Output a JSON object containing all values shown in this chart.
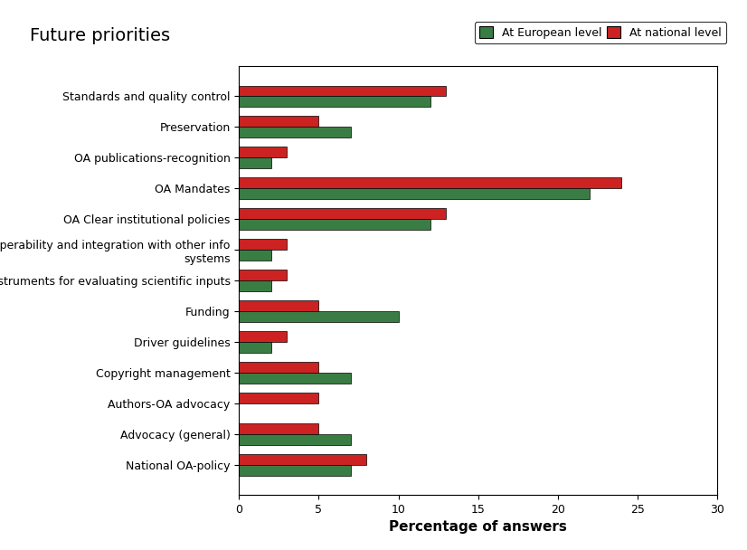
{
  "categories": [
    "National OA-policy",
    "Advocacy (general)",
    "Authors-OA advocacy",
    "Copyright management",
    "Driver guidelines",
    "Funding",
    "Instruments for evaluating scientific inputs",
    "Interoperability and integration with other info\nsystems",
    "OA Clear institutional policies",
    "OA Mandates",
    "OA publications-recognition",
    "Preservation",
    "Standards and quality control"
  ],
  "european_values": [
    7.0,
    7.0,
    0.0,
    7.0,
    2.0,
    10.0,
    2.0,
    2.0,
    12.0,
    22.0,
    2.0,
    7.0,
    12.0
  ],
  "national_values": [
    8.0,
    5.0,
    5.0,
    5.0,
    3.0,
    5.0,
    3.0,
    3.0,
    13.0,
    24.0,
    3.0,
    5.0,
    13.0
  ],
  "european_color": "#3a7d44",
  "national_color": "#cc2222",
  "title": "Future priorities",
  "xlabel": "Percentage of answers",
  "xlim": [
    0,
    30
  ],
  "xticks": [
    0,
    5,
    10,
    15,
    20,
    25,
    30
  ],
  "legend_european": "At European level",
  "legend_national": "At national level",
  "bar_height": 0.35,
  "title_fontsize": 14,
  "label_fontsize": 11,
  "tick_fontsize": 9,
  "legend_fontsize": 9
}
